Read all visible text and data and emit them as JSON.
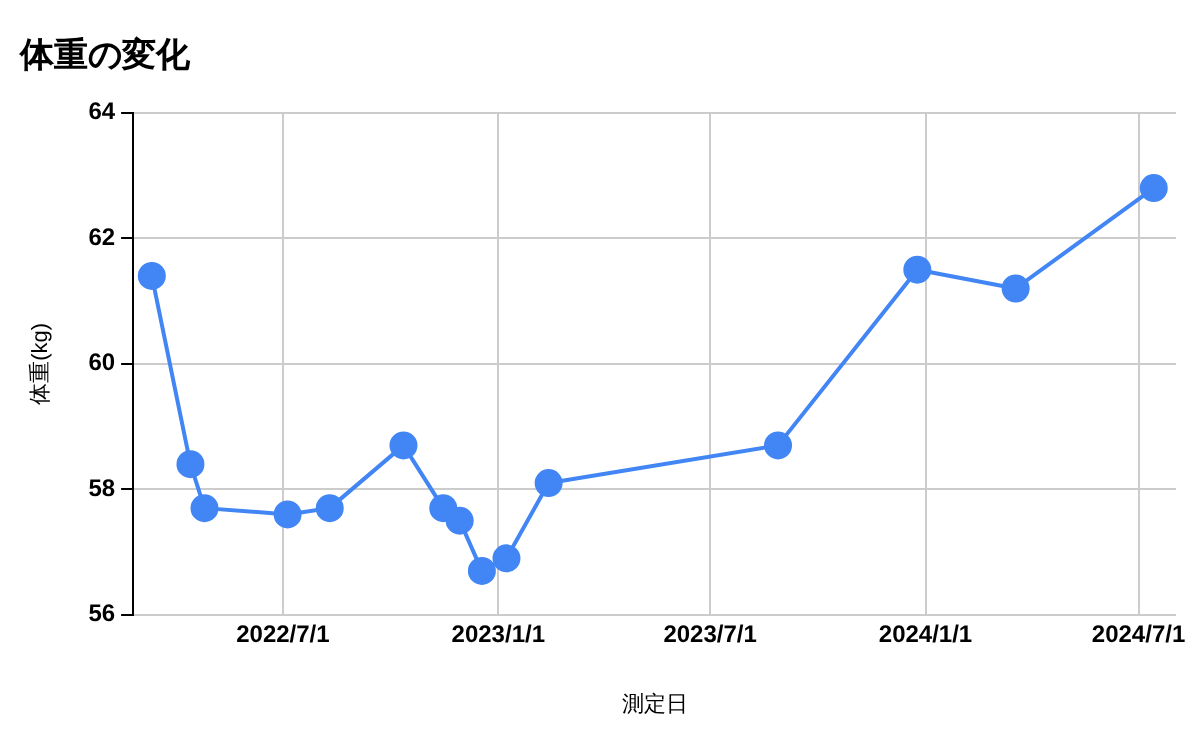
{
  "chart_data": {
    "type": "line",
    "title": "体重の変化",
    "xlabel": "測定日",
    "ylabel": "体重(kg)",
    "x": [
      "2022-03-11",
      "2022-04-13",
      "2022-04-25",
      "2022-07-05",
      "2022-08-10",
      "2022-10-12",
      "2022-11-15",
      "2022-11-29",
      "2022-12-18",
      "2023-01-08",
      "2023-02-13",
      "2023-08-28",
      "2023-12-25",
      "2024-03-18",
      "2024-07-14"
    ],
    "series": [
      {
        "color": "#4285f4",
        "values": [
          61.4,
          58.4,
          57.7,
          57.6,
          57.7,
          58.7,
          57.7,
          57.5,
          56.7,
          56.9,
          58.1,
          58.7,
          61.5,
          61.2,
          62.8
        ]
      }
    ],
    "xlim": [
      "2022-02-23",
      "2024-08-02"
    ],
    "xticks": [
      {
        "value": "2022-07-01",
        "label": "2022/7/1"
      },
      {
        "value": "2023-01-01",
        "label": "2023/1/1"
      },
      {
        "value": "2023-07-01",
        "label": "2023/7/1"
      },
      {
        "value": "2024-01-01",
        "label": "2024/1/1"
      },
      {
        "value": "2024-07-01",
        "label": "2024/7/1"
      }
    ],
    "ylim": [
      56,
      64
    ],
    "yticks": [
      56,
      58,
      60,
      62,
      64
    ],
    "grid": true,
    "legend": false,
    "marker": "circle",
    "line_style": "solid"
  }
}
